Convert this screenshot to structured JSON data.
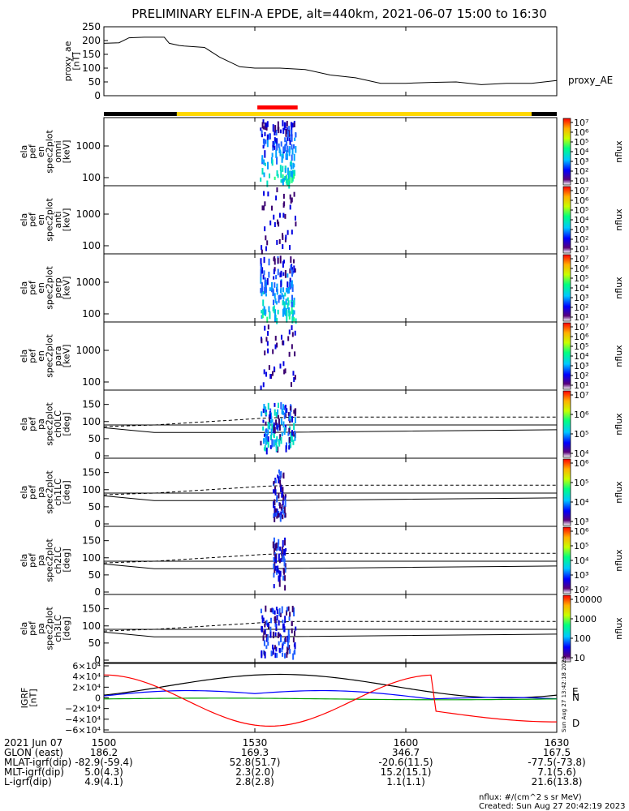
{
  "title": "PRELIMINARY ELFIN-A EPDE, alt=440km, 2021-06-07 15:00 to 16:30",
  "chart_data": {
    "type": "line",
    "x_range": [
      "15:00",
      "16:30"
    ],
    "x_ticks": [
      "1500",
      "1530",
      "1600",
      "1630"
    ],
    "colors": {
      "ae": "#000000",
      "bx": "#000000",
      "by": "#0000ff",
      "bz": "#00a000",
      "bd": "#ff0000",
      "red_bar": "#ff0000",
      "yellow_bar": "#ffd800"
    },
    "ae_panel": {
      "ylabel": [
        "proxy_ae",
        "[nT]"
      ],
      "series_label": "proxy_AE",
      "ylim": [
        0,
        250
      ],
      "y_ticks": [
        "250",
        "200",
        "150",
        "100",
        "50",
        "0"
      ],
      "minutes": [
        0,
        3,
        5,
        8,
        12,
        13,
        15,
        16,
        20,
        23,
        27,
        30,
        33,
        35,
        40,
        45,
        50,
        55,
        60,
        65,
        70,
        75,
        80,
        85,
        90
      ],
      "values": [
        190,
        192,
        210,
        212,
        212,
        190,
        182,
        180,
        175,
        140,
        105,
        100,
        100,
        100,
        95,
        75,
        65,
        45,
        45,
        48,
        50,
        40,
        45,
        45,
        55
      ]
    },
    "spec_panels": [
      {
        "ylabel": [
          "ela",
          "pef",
          "en",
          "spec2plot",
          "omni",
          "[keV]"
        ],
        "y_ticks": [
          "1000",
          "100"
        ],
        "cbar_ticks": [
          "10⁷",
          "10⁶",
          "10⁵",
          "10⁴",
          "10³",
          "10²",
          "10¹"
        ],
        "cbar_label": "nflux"
      },
      {
        "ylabel": [
          "ela",
          "pef",
          "en",
          "spec2plot",
          "anti",
          "[keV]"
        ],
        "y_ticks": [
          "1000",
          "100"
        ],
        "cbar_ticks": [
          "10⁷",
          "10⁶",
          "10⁵",
          "10⁴",
          "10³",
          "10²",
          "10¹"
        ],
        "cbar_label": "nflux"
      },
      {
        "ylabel": [
          "ela",
          "pef",
          "en",
          "spec2plot",
          "perp",
          "[keV]"
        ],
        "y_ticks": [
          "1000",
          "100"
        ],
        "cbar_ticks": [
          "10⁷",
          "10⁶",
          "10⁵",
          "10⁴",
          "10³",
          "10²",
          "10¹"
        ],
        "cbar_label": "nflux"
      },
      {
        "ylabel": [
          "ela",
          "pef",
          "en",
          "spec2plot",
          "para",
          "[keV]"
        ],
        "y_ticks": [
          "1000",
          "100"
        ],
        "cbar_ticks": [
          "10⁷",
          "10⁶",
          "10⁵",
          "10⁴",
          "10³",
          "10²",
          "10¹"
        ],
        "cbar_label": "nflux"
      }
    ],
    "pa_panels": [
      {
        "ylabel": [
          "ela",
          "pef",
          "pa",
          "spec2plot",
          "ch0LC",
          "[deg]"
        ],
        "y_ticks": [
          "150",
          "100",
          "50",
          "0"
        ],
        "cbar_ticks": [
          "10⁷",
          "10⁶",
          "10⁵",
          "10⁴"
        ],
        "cbar_label": "nflux"
      },
      {
        "ylabel": [
          "ela",
          "pef",
          "pa",
          "spec2plot",
          "ch1LC",
          "[deg]"
        ],
        "y_ticks": [
          "150",
          "100",
          "50",
          "0"
        ],
        "cbar_ticks": [
          "10⁶",
          "10⁵",
          "10⁴",
          "10³"
        ],
        "cbar_label": "nflux"
      },
      {
        "ylabel": [
          "ela",
          "pef",
          "pa",
          "spec2plot",
          "ch2LC",
          "[deg]"
        ],
        "y_ticks": [
          "150",
          "100",
          "50",
          "0"
        ],
        "cbar_ticks": [
          "10⁶",
          "10⁵",
          "10⁴",
          "10³",
          "10²"
        ],
        "cbar_label": "nflux"
      },
      {
        "ylabel": [
          "ela",
          "pef",
          "pa",
          "spec2plot",
          "ch3LC",
          "[deg]"
        ],
        "y_ticks": [
          "150",
          "100",
          "50",
          "0"
        ],
        "cbar_ticks": [
          "10000",
          "1000",
          "100",
          "10"
        ],
        "cbar_label": "nflux"
      }
    ],
    "igrf_panel": {
      "ylabel": [
        "IGRF",
        "[nT]"
      ],
      "y_ticks": [
        "6×10⁴",
        "4×10⁴",
        "2×10⁴",
        "0",
        "−2×10⁴",
        "−4×10⁴",
        "−6×10⁴"
      ],
      "ylim": [
        -60000,
        60000
      ],
      "legend": [
        "E",
        "N",
        "D"
      ],
      "side_stamp": "Sun Aug 27 13:42:18 2023"
    }
  },
  "ephemeris": {
    "rows": [
      [
        "2021 Jun 07",
        "1500",
        "1530",
        "1600",
        "1630"
      ],
      [
        "GLON (east)",
        "186.2",
        "169.3",
        "346.7",
        "167.5"
      ],
      [
        "MLAT-igrf(dip)",
        "-82.9(-59.4)",
        "52.8(51.7)",
        "-20.6(11.5)",
        "-77.5(-73.8)"
      ],
      [
        "MLT-igrf(dip)",
        "5.0(4.3)",
        "2.3(2.0)",
        "15.2(15.1)",
        "7.1(5.6)"
      ],
      [
        "L-igrf(dip)",
        "4.9(4.1)",
        "2.8(2.8)",
        "1.1(1.1)",
        "21.6(13.8)"
      ]
    ]
  },
  "footer": {
    "units": "nflux: #/(cm^2 s sr MeV)",
    "created": "Created: Sun Aug 27 20:42:19 2023"
  }
}
